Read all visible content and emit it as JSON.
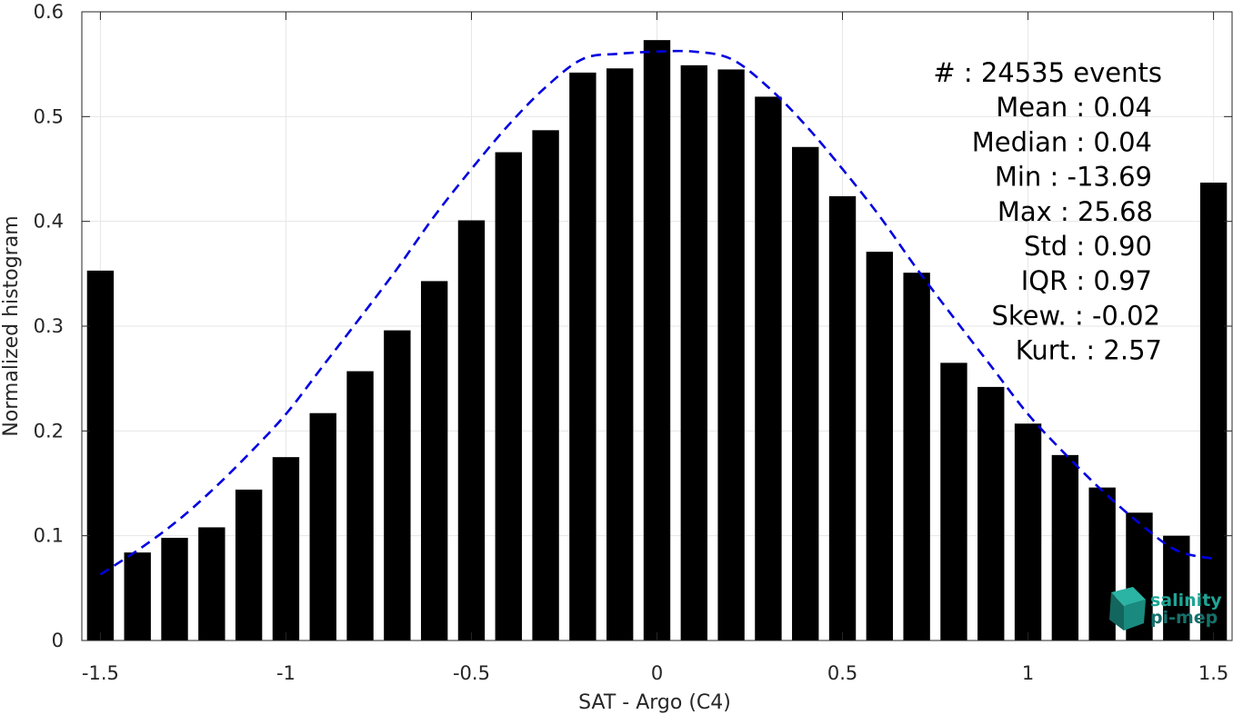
{
  "chart_data": {
    "type": "bar",
    "xlabel": "SAT - Argo (C4)",
    "ylabel": "Normalized histogram",
    "xlim": [
      -1.55,
      1.55
    ],
    "ylim": [
      0,
      0.6
    ],
    "grid": true,
    "x": [
      -1.5,
      -1.4,
      -1.3,
      -1.2,
      -1.1,
      -1.0,
      -0.9,
      -0.8,
      -0.7,
      -0.6,
      -0.5,
      -0.4,
      -0.3,
      -0.2,
      -0.1,
      0.0,
      0.1,
      0.2,
      0.3,
      0.4,
      0.5,
      0.6,
      0.7,
      0.8,
      0.9,
      1.0,
      1.1,
      1.2,
      1.3,
      1.4,
      1.5
    ],
    "values": [
      0.353,
      0.084,
      0.098,
      0.108,
      0.144,
      0.175,
      0.217,
      0.257,
      0.296,
      0.343,
      0.401,
      0.466,
      0.487,
      0.542,
      0.546,
      0.573,
      0.549,
      0.545,
      0.519,
      0.471,
      0.424,
      0.371,
      0.351,
      0.265,
      0.242,
      0.207,
      0.177,
      0.146,
      0.122,
      0.1,
      0.437
    ],
    "bar_color": "#000000",
    "fit_curve": {
      "style": "dashed",
      "color": "#0000e0",
      "x": [
        -1.5,
        -1.4,
        -1.3,
        -1.2,
        -1.1,
        -1.0,
        -0.9,
        -0.8,
        -0.7,
        -0.6,
        -0.5,
        -0.4,
        -0.3,
        -0.2,
        -0.1,
        0.0,
        0.1,
        0.2,
        0.3,
        0.4,
        0.5,
        0.6,
        0.7,
        0.8,
        0.9,
        1.0,
        1.1,
        1.2,
        1.3,
        1.4,
        1.5
      ],
      "y": [
        0.063,
        0.086,
        0.112,
        0.143,
        0.178,
        0.216,
        0.262,
        0.308,
        0.355,
        0.405,
        0.45,
        0.492,
        0.528,
        0.555,
        0.56,
        0.562,
        0.562,
        0.555,
        0.528,
        0.492,
        0.45,
        0.405,
        0.355,
        0.308,
        0.262,
        0.216,
        0.178,
        0.143,
        0.112,
        0.086,
        0.078
      ]
    },
    "x_ticks": [
      {
        "value": -1.5,
        "label": "-1.5"
      },
      {
        "value": -1.0,
        "label": "-1"
      },
      {
        "value": -0.5,
        "label": "-0.5"
      },
      {
        "value": 0.0,
        "label": "0"
      },
      {
        "value": 0.5,
        "label": "0.5"
      },
      {
        "value": 1.0,
        "label": "1"
      },
      {
        "value": 1.5,
        "label": "1.5"
      }
    ],
    "y_ticks": [
      {
        "value": 0.0,
        "label": "0"
      },
      {
        "value": 0.1,
        "label": "0.1"
      },
      {
        "value": 0.2,
        "label": "0.2"
      },
      {
        "value": 0.3,
        "label": "0.3"
      },
      {
        "value": 0.4,
        "label": "0.4"
      },
      {
        "value": 0.5,
        "label": "0.5"
      },
      {
        "value": 0.6,
        "label": "0.6"
      }
    ],
    "stats": [
      "#  : 24535 events",
      "Mean : 0.04",
      "Median : 0.04",
      "Min : -13.69",
      "Max : 25.68",
      "Std : 0.90",
      "IQR : 0.97",
      "Skew. : -0.02",
      "Kurt. : 2.57"
    ]
  },
  "logo": {
    "line1": "salinity",
    "line2": "pi-mep",
    "color": "#1fa595"
  }
}
